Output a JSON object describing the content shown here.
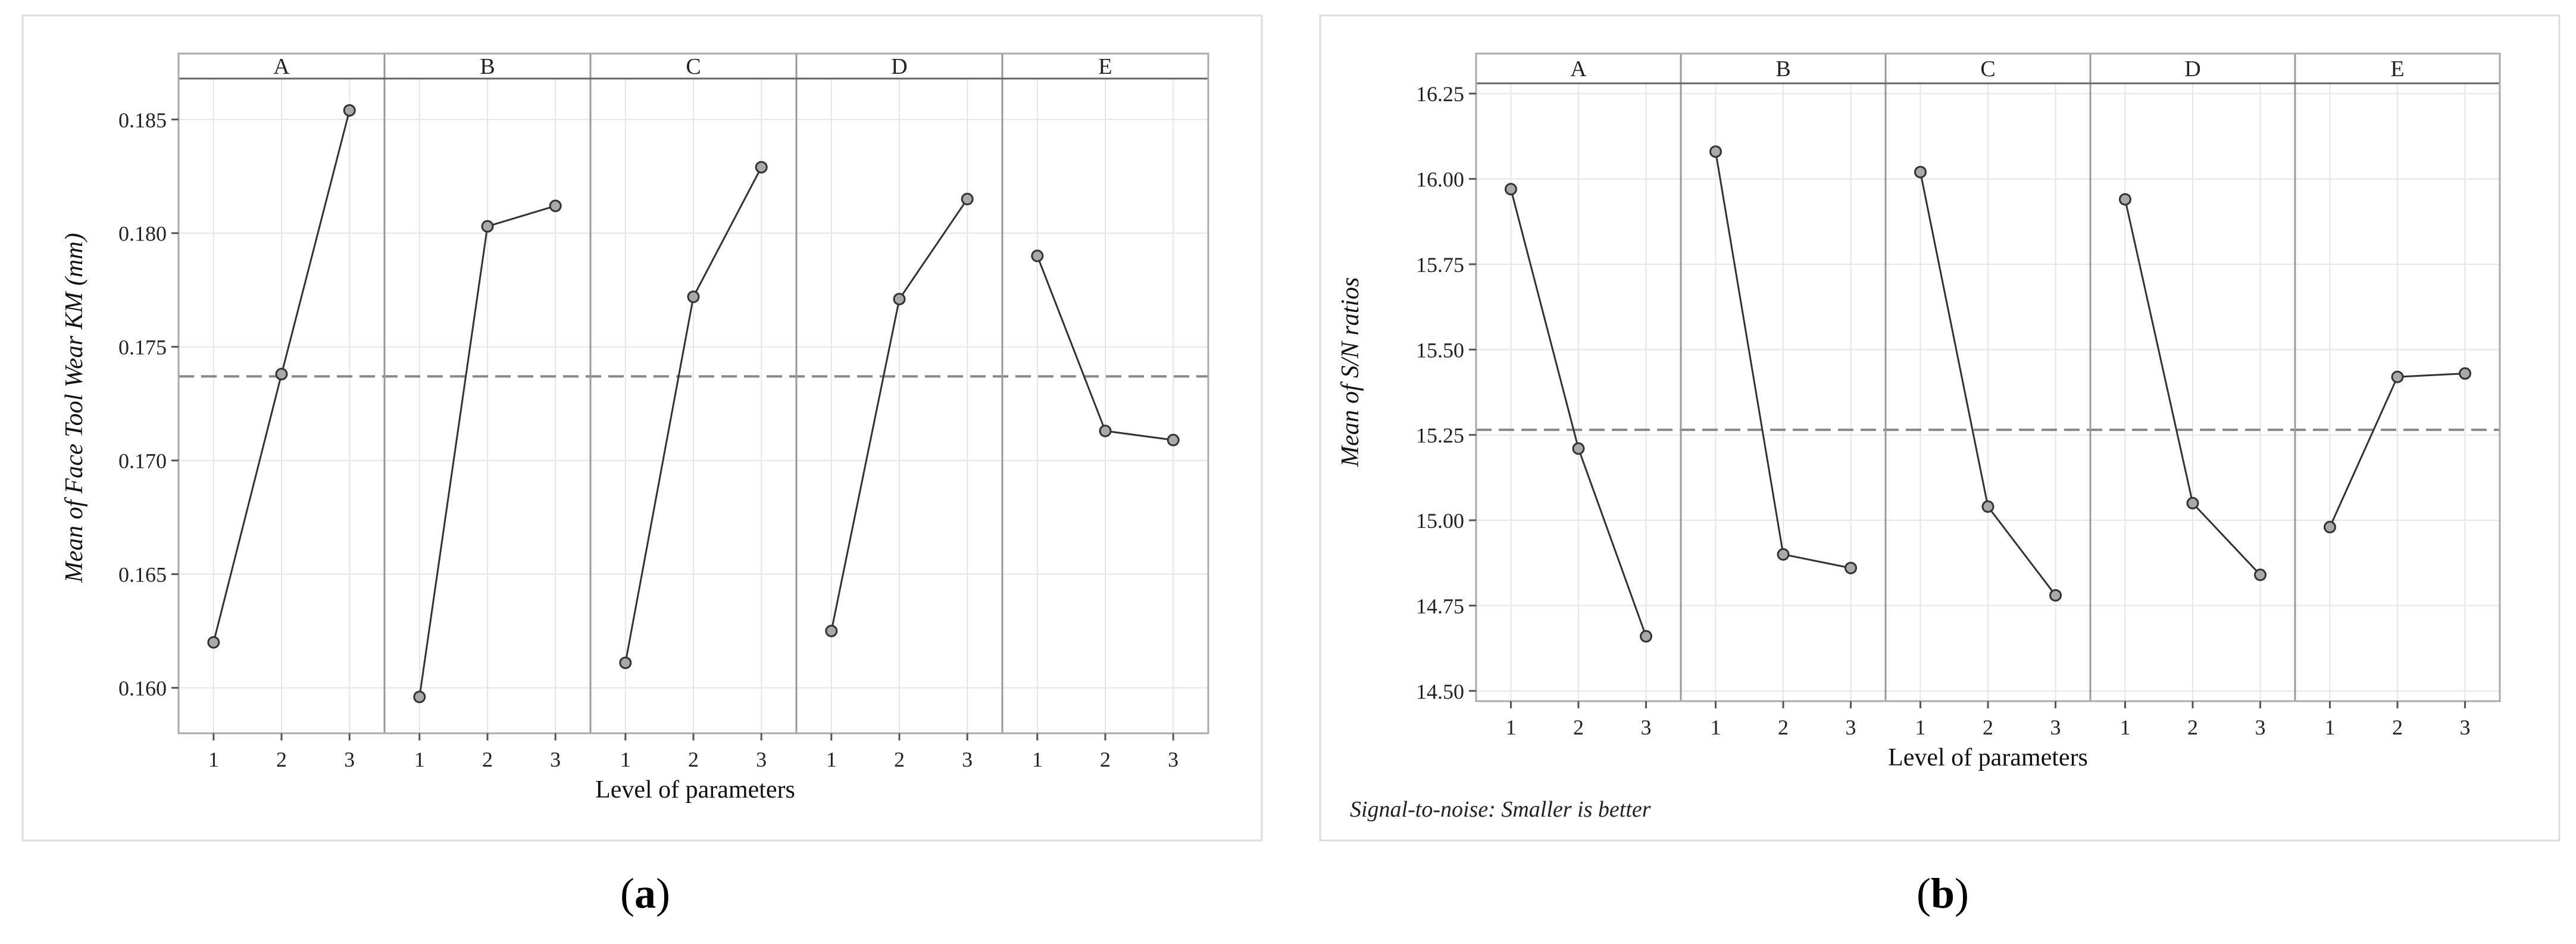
{
  "chart_data": [
    {
      "type": "line",
      "caption": "a",
      "xlabel": "Level of parameters",
      "ylabel": "Mean of Face Tool Wear KM (mm)",
      "panels": [
        "A",
        "B",
        "C",
        "D",
        "E"
      ],
      "categories": [
        "1",
        "2",
        "3"
      ],
      "ylim": [
        0.158,
        0.1868
      ],
      "yticks": [
        0.16,
        0.165,
        0.17,
        0.175,
        0.18,
        0.185
      ],
      "ytick_labels": [
        "0.160",
        "0.165",
        "0.170",
        "0.175",
        "0.180",
        "0.185"
      ],
      "series": [
        {
          "panel": "A",
          "values": [
            0.162,
            0.1738,
            0.1854
          ]
        },
        {
          "panel": "B",
          "values": [
            0.1596,
            0.1803,
            0.1812
          ]
        },
        {
          "panel": "C",
          "values": [
            0.1611,
            0.1772,
            0.1829
          ]
        },
        {
          "panel": "D",
          "values": [
            0.1625,
            0.1771,
            0.1815
          ]
        },
        {
          "panel": "E",
          "values": [
            0.179,
            0.1713,
            0.1709
          ]
        }
      ],
      "reference_line": 0.1737,
      "grid": true
    },
    {
      "type": "line",
      "caption": "b",
      "xlabel": "Level of parameters",
      "ylabel": "Mean of S/N ratios",
      "note": "Signal-to-noise: Smaller is better",
      "panels": [
        "A",
        "B",
        "C",
        "D",
        "E"
      ],
      "categories": [
        "1",
        "2",
        "3"
      ],
      "ylim": [
        14.47,
        16.28
      ],
      "yticks": [
        14.5,
        14.75,
        15.0,
        15.25,
        15.5,
        15.75,
        16.0,
        16.25
      ],
      "ytick_labels": [
        "14.50",
        "14.75",
        "15.00",
        "15.25",
        "15.50",
        "15.75",
        "16.00",
        "16.25"
      ],
      "series": [
        {
          "panel": "A",
          "values": [
            15.97,
            15.21,
            14.66
          ]
        },
        {
          "panel": "B",
          "values": [
            16.08,
            14.9,
            14.86
          ]
        },
        {
          "panel": "C",
          "values": [
            16.02,
            15.04,
            14.78
          ]
        },
        {
          "panel": "D",
          "values": [
            15.94,
            15.05,
            14.84
          ]
        },
        {
          "panel": "E",
          "values": [
            14.98,
            15.42,
            15.43
          ]
        }
      ],
      "reference_line": 15.265,
      "grid": true
    }
  ],
  "colors": {
    "line": "#333333",
    "marker_fill": "#a9a9a9",
    "reference": "#888888",
    "grid": "#e6e6e6",
    "frame": "#aaaaaa",
    "strip_border": "#666666"
  }
}
